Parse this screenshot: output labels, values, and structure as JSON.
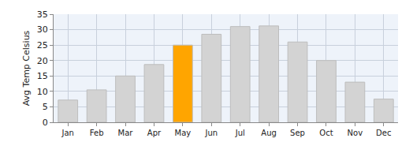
{
  "chart_data": {
    "type": "bar",
    "y_label": "Avg Temp Celsius",
    "categories": [
      "Jan",
      "Feb",
      "Mar",
      "Apr",
      "May",
      "Jun",
      "Jul",
      "Aug",
      "Sep",
      "Oct",
      "Nov",
      "Dec"
    ],
    "values": [
      7.2,
      10.5,
      15,
      18.7,
      25,
      28.5,
      31,
      31.2,
      26,
      20,
      13,
      7.5
    ],
    "colors": [
      "#d3d3d3",
      "#d3d3d3",
      "#d3d3d3",
      "#d3d3d3",
      "#ffa500",
      "#d3d3d3",
      "#d3d3d3",
      "#d3d3d3",
      "#d3d3d3",
      "#d3d3d3",
      "#d3d3d3",
      "#d3d3d3"
    ],
    "ylim": [
      0,
      35
    ],
    "yticks": [
      0,
      5,
      10,
      15,
      20,
      25,
      30,
      35
    ],
    "grid": true
  }
}
